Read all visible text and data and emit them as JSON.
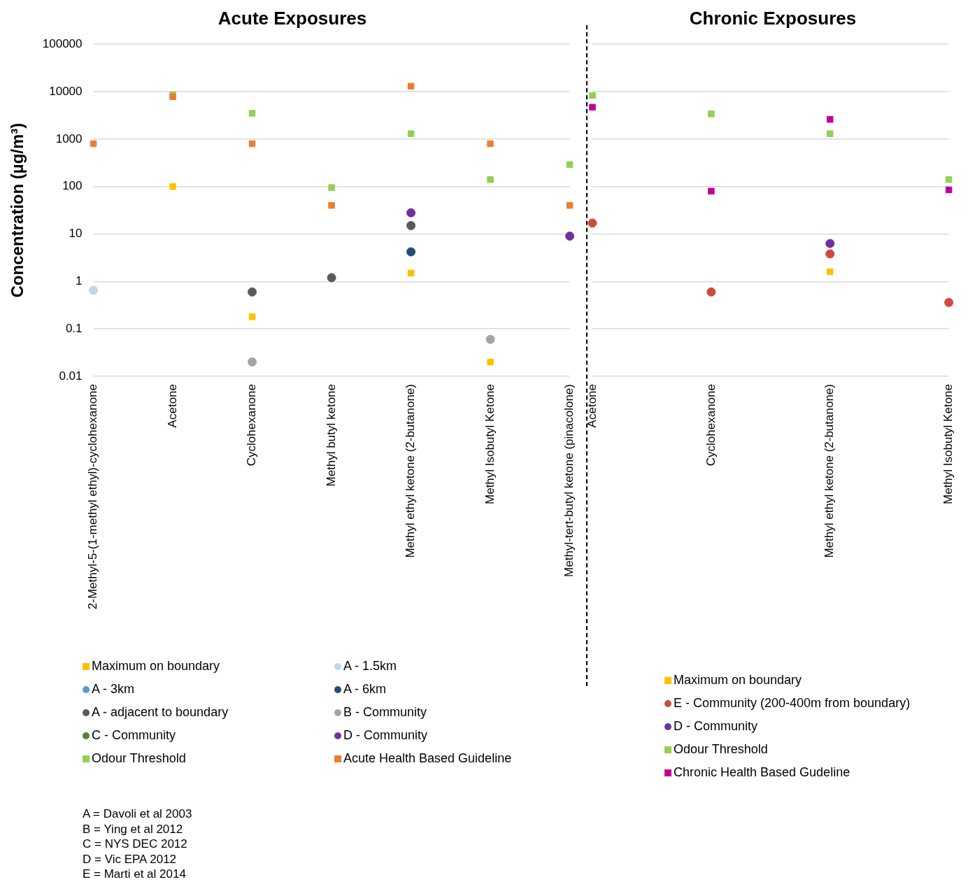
{
  "chart_data": [
    {
      "type": "scatter",
      "title": "Acute Exposures",
      "ylabel": "Concentration (µg/m³)",
      "categories": [
        "2-Methyl-5-(1-methyl ethyl)-cyclohexanone",
        "Acetone",
        "Cyclohexanone",
        "Methyl butyl ketone",
        "Methyl ethyl ketone (2-butanone)",
        "Methyl Isobutyl Ketone",
        "Methyl-tert-butyl ketone (pinacolone)"
      ],
      "series": [
        {
          "name": "Maximum on boundary",
          "color": "#ffc000",
          "marker": "square",
          "values": [
            null,
            100,
            0.18,
            null,
            1.5,
            0.02,
            null
          ]
        },
        {
          "name": "A - 1.5km",
          "color": "#bdd7ee",
          "marker": "circle",
          "values": [
            0.65,
            null,
            null,
            null,
            null,
            null,
            null
          ]
        },
        {
          "name": "A - 3km",
          "color": "#5b9bd5",
          "marker": "circle",
          "values": [
            null,
            null,
            null,
            null,
            null,
            null,
            null
          ]
        },
        {
          "name": "A - 6km",
          "color": "#1f4e79",
          "marker": "circle",
          "values": [
            null,
            null,
            null,
            null,
            4.2,
            null,
            null
          ]
        },
        {
          "name": "A - adjacent to boundary",
          "color": "#595959",
          "marker": "circle",
          "values": [
            null,
            null,
            0.6,
            1.2,
            15,
            null,
            null
          ]
        },
        {
          "name": "B - Community",
          "color": "#a5a5a5",
          "marker": "circle",
          "values": [
            null,
            null,
            0.02,
            null,
            null,
            0.06,
            null
          ]
        },
        {
          "name": "C - Community",
          "color": "#548235",
          "marker": "circle",
          "values": [
            null,
            null,
            null,
            null,
            null,
            null,
            null
          ]
        },
        {
          "name": "D - Community",
          "color": "#7030a0",
          "marker": "circle",
          "values": [
            null,
            null,
            null,
            null,
            28,
            null,
            9
          ]
        },
        {
          "name": "Odour Threshold",
          "color": "#92d050",
          "marker": "square",
          "values": [
            null,
            8500,
            3500,
            95,
            1300,
            140,
            290
          ]
        },
        {
          "name": "Acute Health Based Guideline",
          "color": "#ed7d31",
          "marker": "square",
          "values": [
            800,
            7800,
            800,
            40,
            13000,
            800,
            40
          ]
        }
      ],
      "ylim": [
        0.01,
        100000
      ],
      "yticks": [
        0.01,
        0.1,
        1,
        10,
        100,
        1000,
        10000,
        100000
      ],
      "log": "y",
      "grid": "y",
      "legend": "bottom",
      "annotations": [
        "A = Davoli et al 2003",
        "B = Ying et al 2012",
        "C = NYS DEC 2012",
        "D = Vic EPA 2012",
        "E = Marti et al 2014"
      ]
    },
    {
      "type": "scatter",
      "title": "Chronic Exposures",
      "categories": [
        "Acetone",
        "Cyclohexanone",
        "Methyl ethyl ketone (2-butanone)",
        "Methyl Isobutyl Ketone"
      ],
      "series": [
        {
          "name": "Maximum on boundary",
          "color": "#ffc000",
          "marker": "square",
          "values": [
            null,
            null,
            1.6,
            null
          ]
        },
        {
          "name": "E - Community (200-400m from boundary)",
          "color": "#d04a3c",
          "marker": "circle",
          "values": [
            17,
            0.6,
            3.8,
            0.36
          ]
        },
        {
          "name": "D - Community",
          "color": "#7030a0",
          "marker": "circle",
          "values": [
            null,
            null,
            6.3,
            null
          ]
        },
        {
          "name": "Odour Threshold",
          "color": "#92d050",
          "marker": "square",
          "values": [
            8300,
            3400,
            1300,
            140
          ]
        },
        {
          "name": "Chronic Health Based Gudeline",
          "color": "#c00099",
          "marker": "square",
          "values": [
            4700,
            80,
            2600,
            85
          ]
        }
      ],
      "ylim": [
        0.01,
        100000
      ],
      "yticks": [
        0.01,
        0.1,
        1,
        10,
        100,
        1000,
        10000,
        100000
      ],
      "log": "y",
      "grid": "y",
      "legend": "bottom",
      "tick_labels": "x"
    }
  ]
}
